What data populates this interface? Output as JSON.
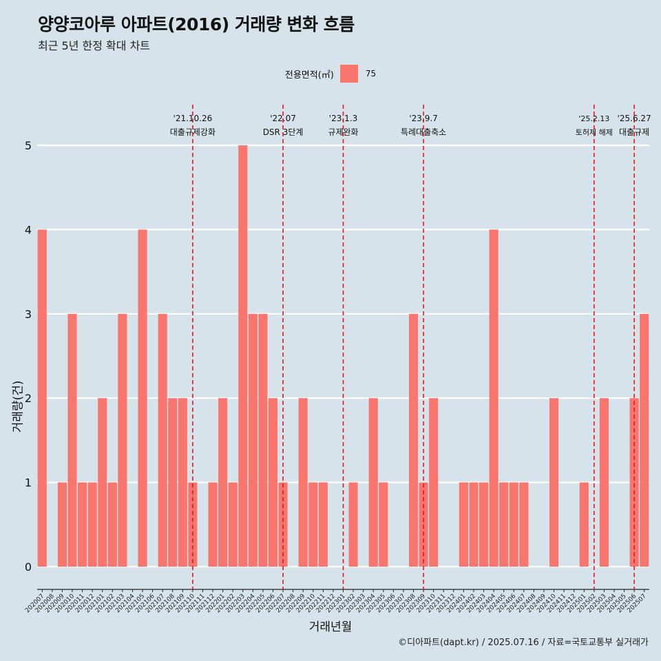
{
  "title": "양양코아루 아파트(2016) 거래량 변화 흐름",
  "subtitle": "최근 5년 한정 확대 차트",
  "caption": "©디아파트(dapt.kr) / 2025.07.16 / 자료=국토교통부 실거래가",
  "legend": {
    "title": "전용면적(㎡)",
    "label": "75",
    "color": "#f8766d"
  },
  "chart_data": {
    "type": "bar",
    "xlabel": "거래년월",
    "ylabel": "거래량(건)",
    "ylim": [
      0,
      5
    ],
    "yticks": [
      0,
      1,
      2,
      3,
      4,
      5
    ],
    "bar_color": "#f8766d",
    "grid": true,
    "categories": [
      "202007",
      "202008",
      "202009",
      "202010",
      "202011",
      "202012",
      "202101",
      "202102",
      "202103",
      "202104",
      "202105",
      "202106",
      "202107",
      "202108",
      "202109",
      "202110",
      "202111",
      "202112",
      "202201",
      "202202",
      "202203",
      "202204",
      "202205",
      "202206",
      "202207",
      "202208",
      "202209",
      "202210",
      "202211",
      "202212",
      "202301",
      "202302",
      "202303",
      "202304",
      "202305",
      "202306",
      "202307",
      "202308",
      "202309",
      "202310",
      "202311",
      "202312",
      "202401",
      "202402",
      "202403",
      "202404",
      "202405",
      "202406",
      "202407",
      "202408",
      "202409",
      "202410",
      "202411",
      "202412",
      "202501",
      "202502",
      "202503",
      "202504",
      "202505",
      "202506",
      "202507"
    ],
    "values": [
      4,
      0,
      1,
      3,
      1,
      1,
      2,
      1,
      3,
      0,
      4,
      0,
      3,
      2,
      2,
      1,
      0,
      1,
      2,
      1,
      5,
      3,
      3,
      2,
      1,
      0,
      2,
      1,
      1,
      0,
      0,
      1,
      0,
      2,
      1,
      0,
      0,
      3,
      1,
      2,
      0,
      0,
      1,
      1,
      1,
      4,
      1,
      1,
      1,
      0,
      0,
      2,
      0,
      0,
      1,
      0,
      2,
      0,
      0,
      2,
      3
    ],
    "annotations": [
      {
        "month": "202110",
        "date": "'21.10.26",
        "label": "대출규제강화"
      },
      {
        "month": "202207",
        "date": "'22.07",
        "label": "DSR 3단계"
      },
      {
        "month": "202301",
        "date": "'23.1.3",
        "label": "규제완화"
      },
      {
        "month": "202309",
        "date": "'23.9.7",
        "label": "특례대출축소"
      },
      {
        "month": "202502",
        "date": "'25.2.13",
        "label": "토허제 해제"
      },
      {
        "month": "202506",
        "date": "'25.6.27",
        "label": "대출규제"
      }
    ]
  }
}
